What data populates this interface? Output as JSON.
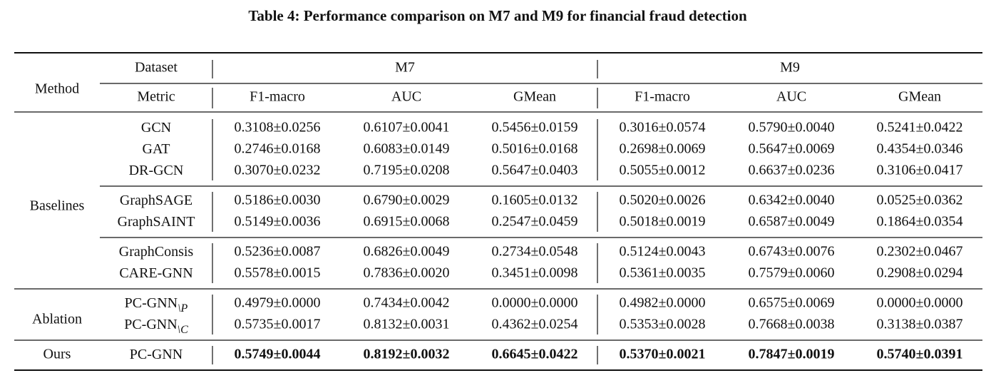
{
  "title": "Table 4: Performance comparison on M7 and M9 for financial fraud detection",
  "header": {
    "method": "Method",
    "dataset": "Dataset",
    "metric": "Metric",
    "datasets": [
      {
        "name": "M7",
        "metrics": [
          "F1-macro",
          "AUC",
          "GMean"
        ]
      },
      {
        "name": "M9",
        "metrics": [
          "F1-macro",
          "AUC",
          "GMean"
        ]
      }
    ]
  },
  "groups": [
    {
      "label": "Baselines",
      "bold": false,
      "blocks": [
        [
          {
            "method": {
              "name": "GCN"
            },
            "values": [
              "0.3108±0.0256",
              "0.6107±0.0041",
              "0.5456±0.0159",
              "0.3016±0.0574",
              "0.5790±0.0040",
              "0.5241±0.0422"
            ]
          },
          {
            "method": {
              "name": "GAT"
            },
            "values": [
              "0.2746±0.0168",
              "0.6083±0.0149",
              "0.5016±0.0168",
              "0.2698±0.0069",
              "0.5647±0.0069",
              "0.4354±0.0346"
            ]
          },
          {
            "method": {
              "name": "DR-GCN"
            },
            "values": [
              "0.3070±0.0232",
              "0.7195±0.0208",
              "0.5647±0.0403",
              "0.5055±0.0012",
              "0.6637±0.0236",
              "0.3106±0.0417"
            ]
          }
        ],
        [
          {
            "method": {
              "name": "GraphSAGE"
            },
            "values": [
              "0.5186±0.0030",
              "0.6790±0.0029",
              "0.1605±0.0132",
              "0.5020±0.0026",
              "0.6342±0.0040",
              "0.0525±0.0362"
            ]
          },
          {
            "method": {
              "name": "GraphSAINT"
            },
            "values": [
              "0.5149±0.0036",
              "0.6915±0.0068",
              "0.2547±0.0459",
              "0.5018±0.0019",
              "0.6587±0.0049",
              "0.1864±0.0354"
            ]
          }
        ],
        [
          {
            "method": {
              "name": "GraphConsis"
            },
            "values": [
              "0.5236±0.0087",
              "0.6826±0.0049",
              "0.2734±0.0548",
              "0.5124±0.0043",
              "0.6743±0.0076",
              "0.2302±0.0467"
            ]
          },
          {
            "method": {
              "name": "CARE-GNN"
            },
            "values": [
              "0.5578±0.0015",
              "0.7836±0.0020",
              "0.3451±0.0098",
              "0.5361±0.0035",
              "0.7579±0.0060",
              "0.2908±0.0294"
            ]
          }
        ]
      ]
    },
    {
      "label": "Ablation",
      "bold": false,
      "blocks": [
        [
          {
            "method": {
              "name": "PC-GNN",
              "subscript": "\\P"
            },
            "values": [
              "0.4979±0.0000",
              "0.7434±0.0042",
              "0.0000±0.0000",
              "0.4982±0.0000",
              "0.6575±0.0069",
              "0.0000±0.0000"
            ]
          },
          {
            "method": {
              "name": "PC-GNN",
              "subscript": "\\C"
            },
            "values": [
              "0.5735±0.0017",
              "0.8132±0.0031",
              "0.4362±0.0254",
              "0.5353±0.0028",
              "0.7668±0.0038",
              "0.3138±0.0387"
            ]
          }
        ]
      ]
    },
    {
      "label": "Ours",
      "bold": true,
      "blocks": [
        [
          {
            "method": {
              "name": "PC-GNN"
            },
            "values": [
              "0.5749±0.0044",
              "0.8192±0.0032",
              "0.6645±0.0422",
              "0.5370±0.0021",
              "0.7847±0.0019",
              "0.5740±0.0391"
            ]
          }
        ]
      ]
    }
  ]
}
